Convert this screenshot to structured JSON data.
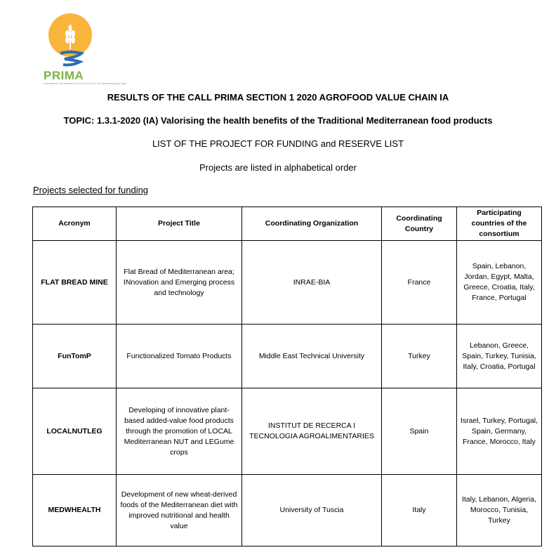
{
  "logo": {
    "name": "PRIMA",
    "tagline": "PARTNERSHIP FOR RESEARCH AND INNOVATION IN THE MEDITERRANEAN AREA",
    "colors": {
      "sun": "#f9b43c",
      "wave": "#2a6fb5",
      "text": "#7cb342"
    }
  },
  "heading": "RESULTS OF THE CALL PRIMA SECTION 1 2020 AGROFOOD VALUE CHAIN IA",
  "topic": "TOPIC: 1.3.1-2020 (IA) Valorising the health benefits of the Traditional Mediterranean food products",
  "list_title": "LIST OF THE PROJECT FOR FUNDING and RESERVE LIST",
  "order_note": "Projects are listed in alphabetical order",
  "section_label": "Projects selected for funding",
  "table": {
    "headers": [
      "Acronym",
      "Project Title",
      "Coordinating Organization",
      "Coordinating Country",
      "Participating countries of the consortium"
    ],
    "rows": [
      {
        "acronym": "FLAT BREAD MINE",
        "title": "Flat Bread of Mediterranean area; INnovation and Emerging process and technology",
        "organization": "INRAE-BIA",
        "country": "France",
        "participants": "Spain, Lebanon, Jordan, Egypt, Malta, Greece, Croatia, Italy, France, Portugal"
      },
      {
        "acronym": "FunTomP",
        "title": "Functionalized Tomato Products",
        "organization": "Middle East Technical University",
        "country": "Turkey",
        "participants": "Lebanon, Greece, Spain, Turkey, Tunisia, Italy, Croatia, Portugal"
      },
      {
        "acronym": "LOCALNUTLEG",
        "title": "Developing of innovative plant-based added-value food products through the promotion of LOCAL Mediterranean NUT and LEGume crops",
        "organization": "INSTITUT DE RECERCA I TECNOLOGIA AGROALIMENTARIES",
        "country": "Spain",
        "participants": "Israel, Turkey, Portugal, Spain, Germany, France, Morocco, Italy"
      },
      {
        "acronym": "MEDWHEALTH",
        "title": "Development of new wheat-derived foods of the Mediterranean diet with improved nutritional and health value",
        "organization": "University of Tuscia",
        "country": "Italy",
        "participants": "Italy, Lebanon, Algeria, Morocco, Tunisia, Turkey"
      }
    ]
  }
}
